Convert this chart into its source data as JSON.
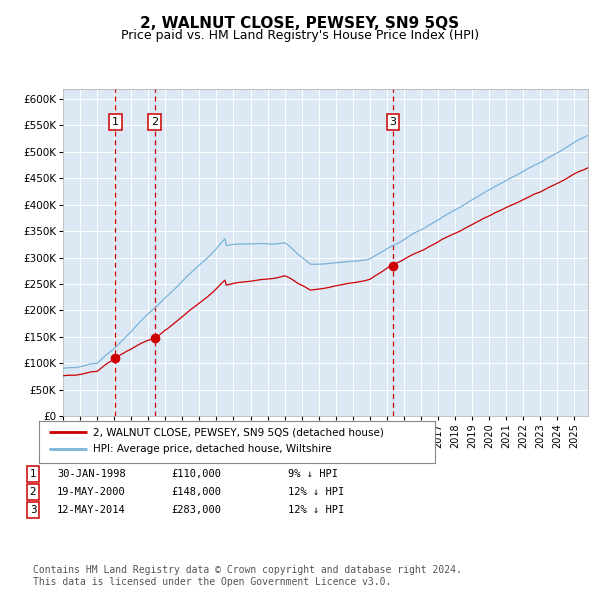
{
  "title": "2, WALNUT CLOSE, PEWSEY, SN9 5QS",
  "subtitle": "Price paid vs. HM Land Registry's House Price Index (HPI)",
  "title_fontsize": 11,
  "subtitle_fontsize": 9,
  "ylabel_ticks": [
    "£0",
    "£50K",
    "£100K",
    "£150K",
    "£200K",
    "£250K",
    "£300K",
    "£350K",
    "£400K",
    "£450K",
    "£500K",
    "£550K",
    "£600K"
  ],
  "ytick_values": [
    0,
    50000,
    100000,
    150000,
    200000,
    250000,
    300000,
    350000,
    400000,
    450000,
    500000,
    550000,
    600000
  ],
  "ylim": [
    0,
    620000
  ],
  "xlim_start": 1995.0,
  "xlim_end": 2025.8,
  "hpi_color": "#7ab3d8",
  "price_color": "#cc0000",
  "vline_color": "#cc0000",
  "marker_color": "#cc0000",
  "plot_bg": "#dce9f5",
  "grid_color": "#ffffff",
  "legend_line1": "2, WALNUT CLOSE, PEWSEY, SN9 5QS (detached house)",
  "legend_line2": "HPI: Average price, detached house, Wiltshire",
  "sales": [
    {
      "label": "1",
      "date": 1998.08,
      "price": 110000,
      "display_date": "30-JAN-1998",
      "display_price": "£110,000",
      "hpi_pct": "9% ↓ HPI"
    },
    {
      "label": "2",
      "date": 2000.38,
      "price": 148000,
      "display_date": "19-MAY-2000",
      "display_price": "£148,000",
      "hpi_pct": "12% ↓ HPI"
    },
    {
      "label": "3",
      "date": 2014.37,
      "price": 283000,
      "display_date": "12-MAY-2014",
      "display_price": "£283,000",
      "hpi_pct": "12% ↓ HPI"
    }
  ],
  "footer": "Contains HM Land Registry data © Crown copyright and database right 2024.\nThis data is licensed under the Open Government Licence v3.0.",
  "footer_fontsize": 7.0
}
